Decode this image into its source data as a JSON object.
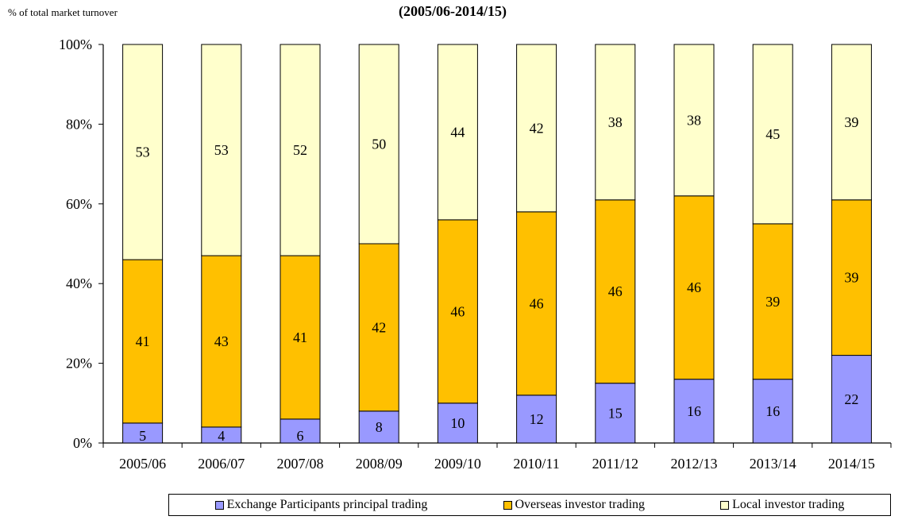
{
  "chart_data": {
    "type": "bar",
    "stacked": true,
    "y_unit_label": "% of total market turnover",
    "subtitle": "(2005/06-2014/15)",
    "categories": [
      "2005/06",
      "2006/07",
      "2007/08",
      "2008/09",
      "2009/10",
      "2010/11",
      "2011/12",
      "2012/13",
      "2013/14",
      "2014/15"
    ],
    "series": [
      {
        "name": "Exchange Participants principal trading",
        "color": "#9999ff",
        "values": [
          5,
          4,
          6,
          8,
          10,
          12,
          15,
          16,
          16,
          22
        ],
        "labels": [
          "5",
          "4",
          "6",
          "8",
          "10",
          "12",
          "15",
          "16",
          "16",
          "22"
        ]
      },
      {
        "name": "Overseas investor trading",
        "color": "#ffc000",
        "values": [
          41,
          43,
          41,
          42,
          46,
          46,
          46,
          46,
          39,
          39
        ],
        "labels": [
          "41",
          "43",
          "41",
          "42",
          "46",
          "46",
          "46",
          "46",
          "39",
          "39"
        ]
      },
      {
        "name": "Local investor trading",
        "color": "#ffffcc",
        "values": [
          53,
          53,
          52,
          50,
          44,
          42,
          38,
          38,
          45,
          39
        ],
        "labels": [
          "53",
          "53",
          "52",
          "50",
          "44",
          "42",
          "38",
          "38",
          "45",
          "39"
        ]
      }
    ],
    "ylim": [
      0,
      100
    ],
    "yticks": [
      0,
      20,
      40,
      60,
      80,
      100
    ],
    "ytick_labels": [
      "0%",
      "20%",
      "40%",
      "60%",
      "80%",
      "100%"
    ],
    "grid": false,
    "legend_position": "bottom"
  }
}
